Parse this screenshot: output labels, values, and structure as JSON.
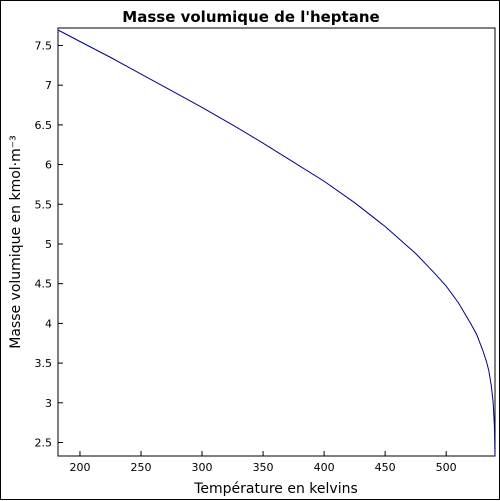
{
  "chart_data": {
    "type": "line",
    "title": "Masse volumique de l'heptane",
    "xlabel": "Température en kelvins",
    "ylabel": "Masse volumique en kmol·m⁻³",
    "xlim": [
      182,
      540
    ],
    "ylim": [
      2.33,
      7.72
    ],
    "xticks": [
      200,
      250,
      300,
      350,
      400,
      450,
      500
    ],
    "yticks": [
      2.5,
      3,
      3.5,
      4,
      4.5,
      5,
      5.5,
      6,
      6.5,
      7,
      7.5
    ],
    "grid": false,
    "colors": {
      "line": "#00008b",
      "axes": "#000000"
    },
    "series": [
      {
        "values": [
          [
            182.6,
            7.69
          ],
          [
            200,
            7.55
          ],
          [
            225,
            7.35
          ],
          [
            250,
            7.14
          ],
          [
            275,
            6.93
          ],
          [
            300,
            6.72
          ],
          [
            325,
            6.5
          ],
          [
            350,
            6.27
          ],
          [
            375,
            6.03
          ],
          [
            400,
            5.79
          ],
          [
            425,
            5.52
          ],
          [
            450,
            5.22
          ],
          [
            475,
            4.88
          ],
          [
            490,
            4.64
          ],
          [
            500,
            4.47
          ],
          [
            510,
            4.26
          ],
          [
            520,
            4.0
          ],
          [
            525,
            3.86
          ],
          [
            530,
            3.66
          ],
          [
            533,
            3.52
          ],
          [
            535,
            3.4
          ],
          [
            537,
            3.21
          ],
          [
            538.5,
            3.0
          ],
          [
            539.5,
            2.71
          ],
          [
            540,
            2.33
          ]
        ]
      }
    ]
  }
}
